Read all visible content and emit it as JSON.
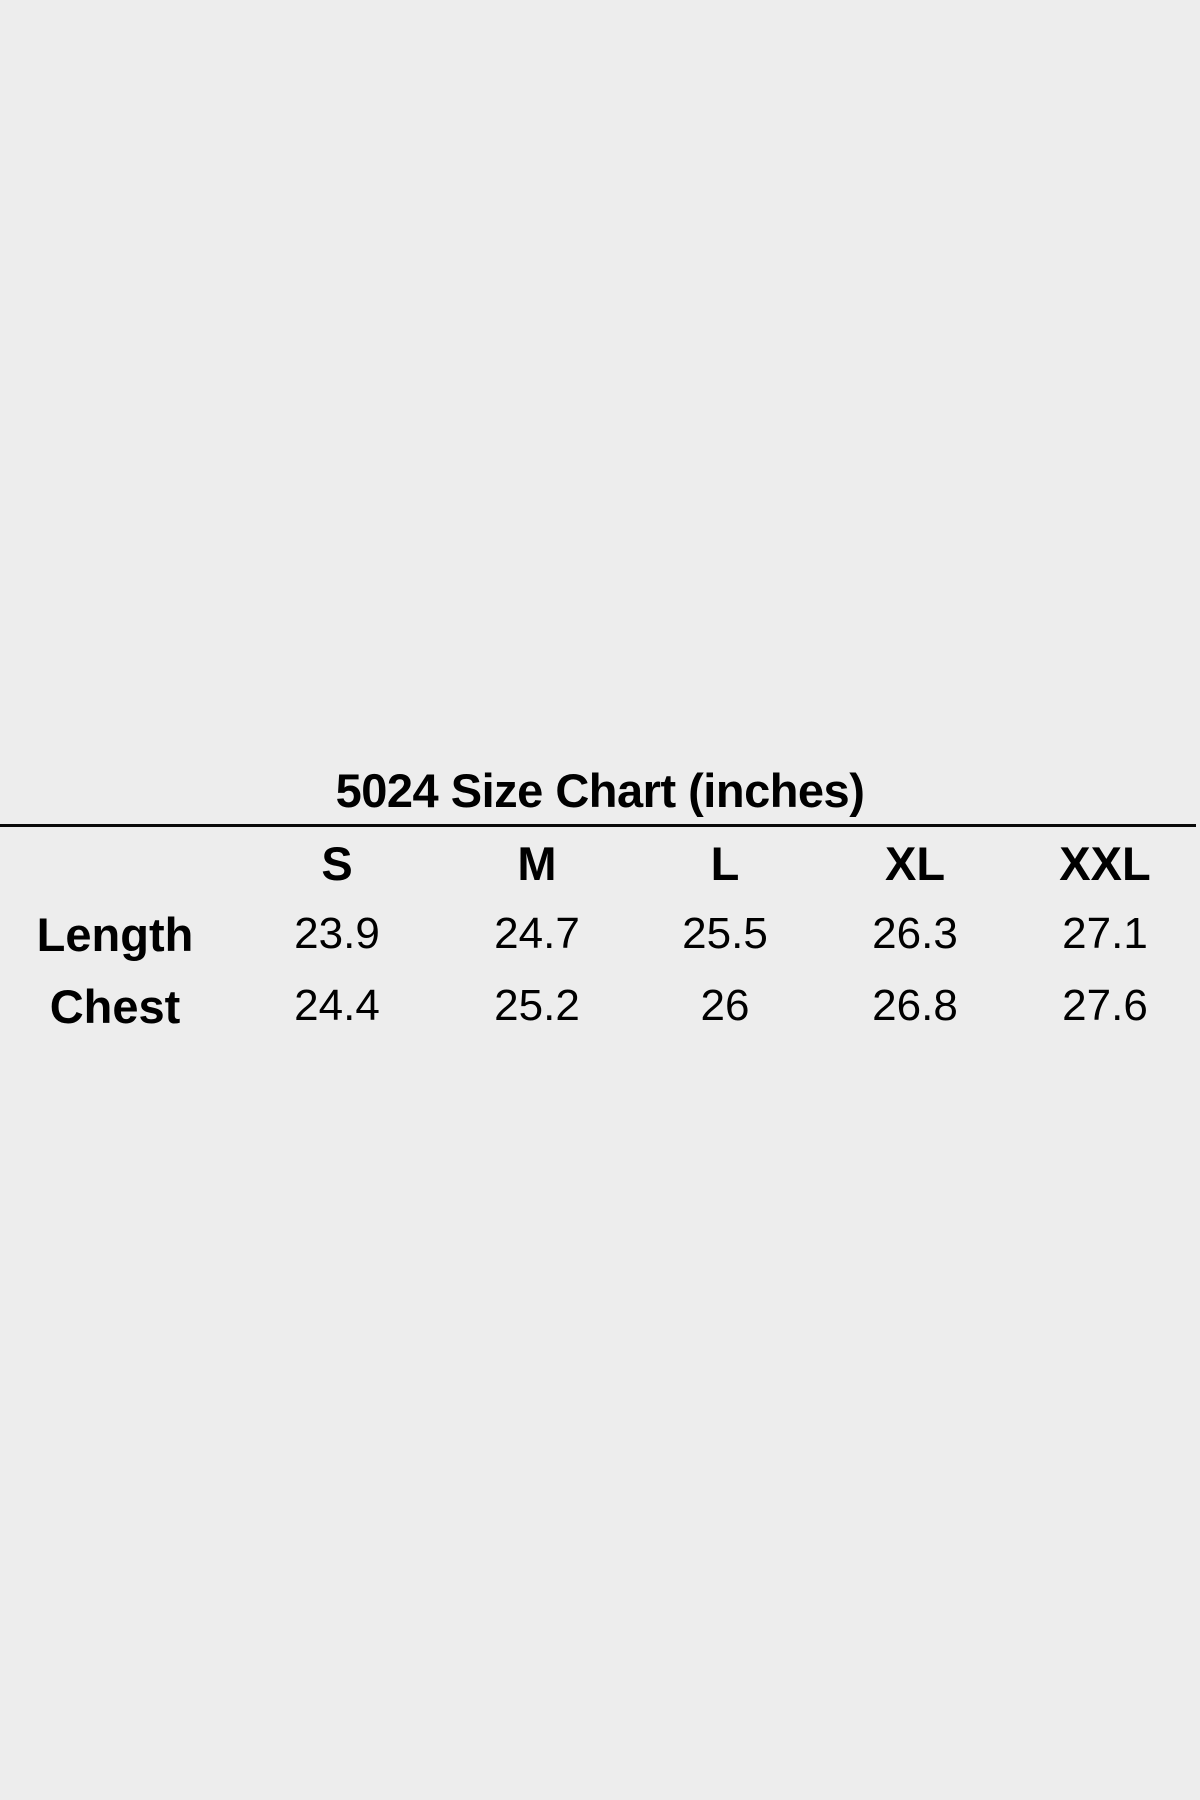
{
  "page": {
    "background_color": "#ededed",
    "text_color": "#000000",
    "rule_color": "#0a0a0a"
  },
  "title": "5024 Size Chart (inches)",
  "chart_data": {
    "type": "table",
    "title": "5024 Size Chart (inches)",
    "unit": "inches",
    "categories": [
      "S",
      "M",
      "L",
      "XL",
      "XXL"
    ],
    "series": [
      {
        "name": "Length",
        "values": [
          23.9,
          24.7,
          25.5,
          26.3,
          27.1
        ]
      },
      {
        "name": "Chest",
        "values": [
          24.4,
          25.2,
          26,
          26.8,
          27.6
        ]
      }
    ]
  },
  "table": {
    "corner_label": "",
    "columns": [
      "S",
      "M",
      "L",
      "XL",
      "XXL"
    ],
    "rows": [
      {
        "label": "Length",
        "values": [
          "23.9",
          "24.7",
          "25.5",
          "26.3",
          "27.1"
        ]
      },
      {
        "label": "Chest",
        "values": [
          "24.4",
          "25.2",
          "26",
          "26.8",
          "27.6"
        ]
      }
    ]
  }
}
